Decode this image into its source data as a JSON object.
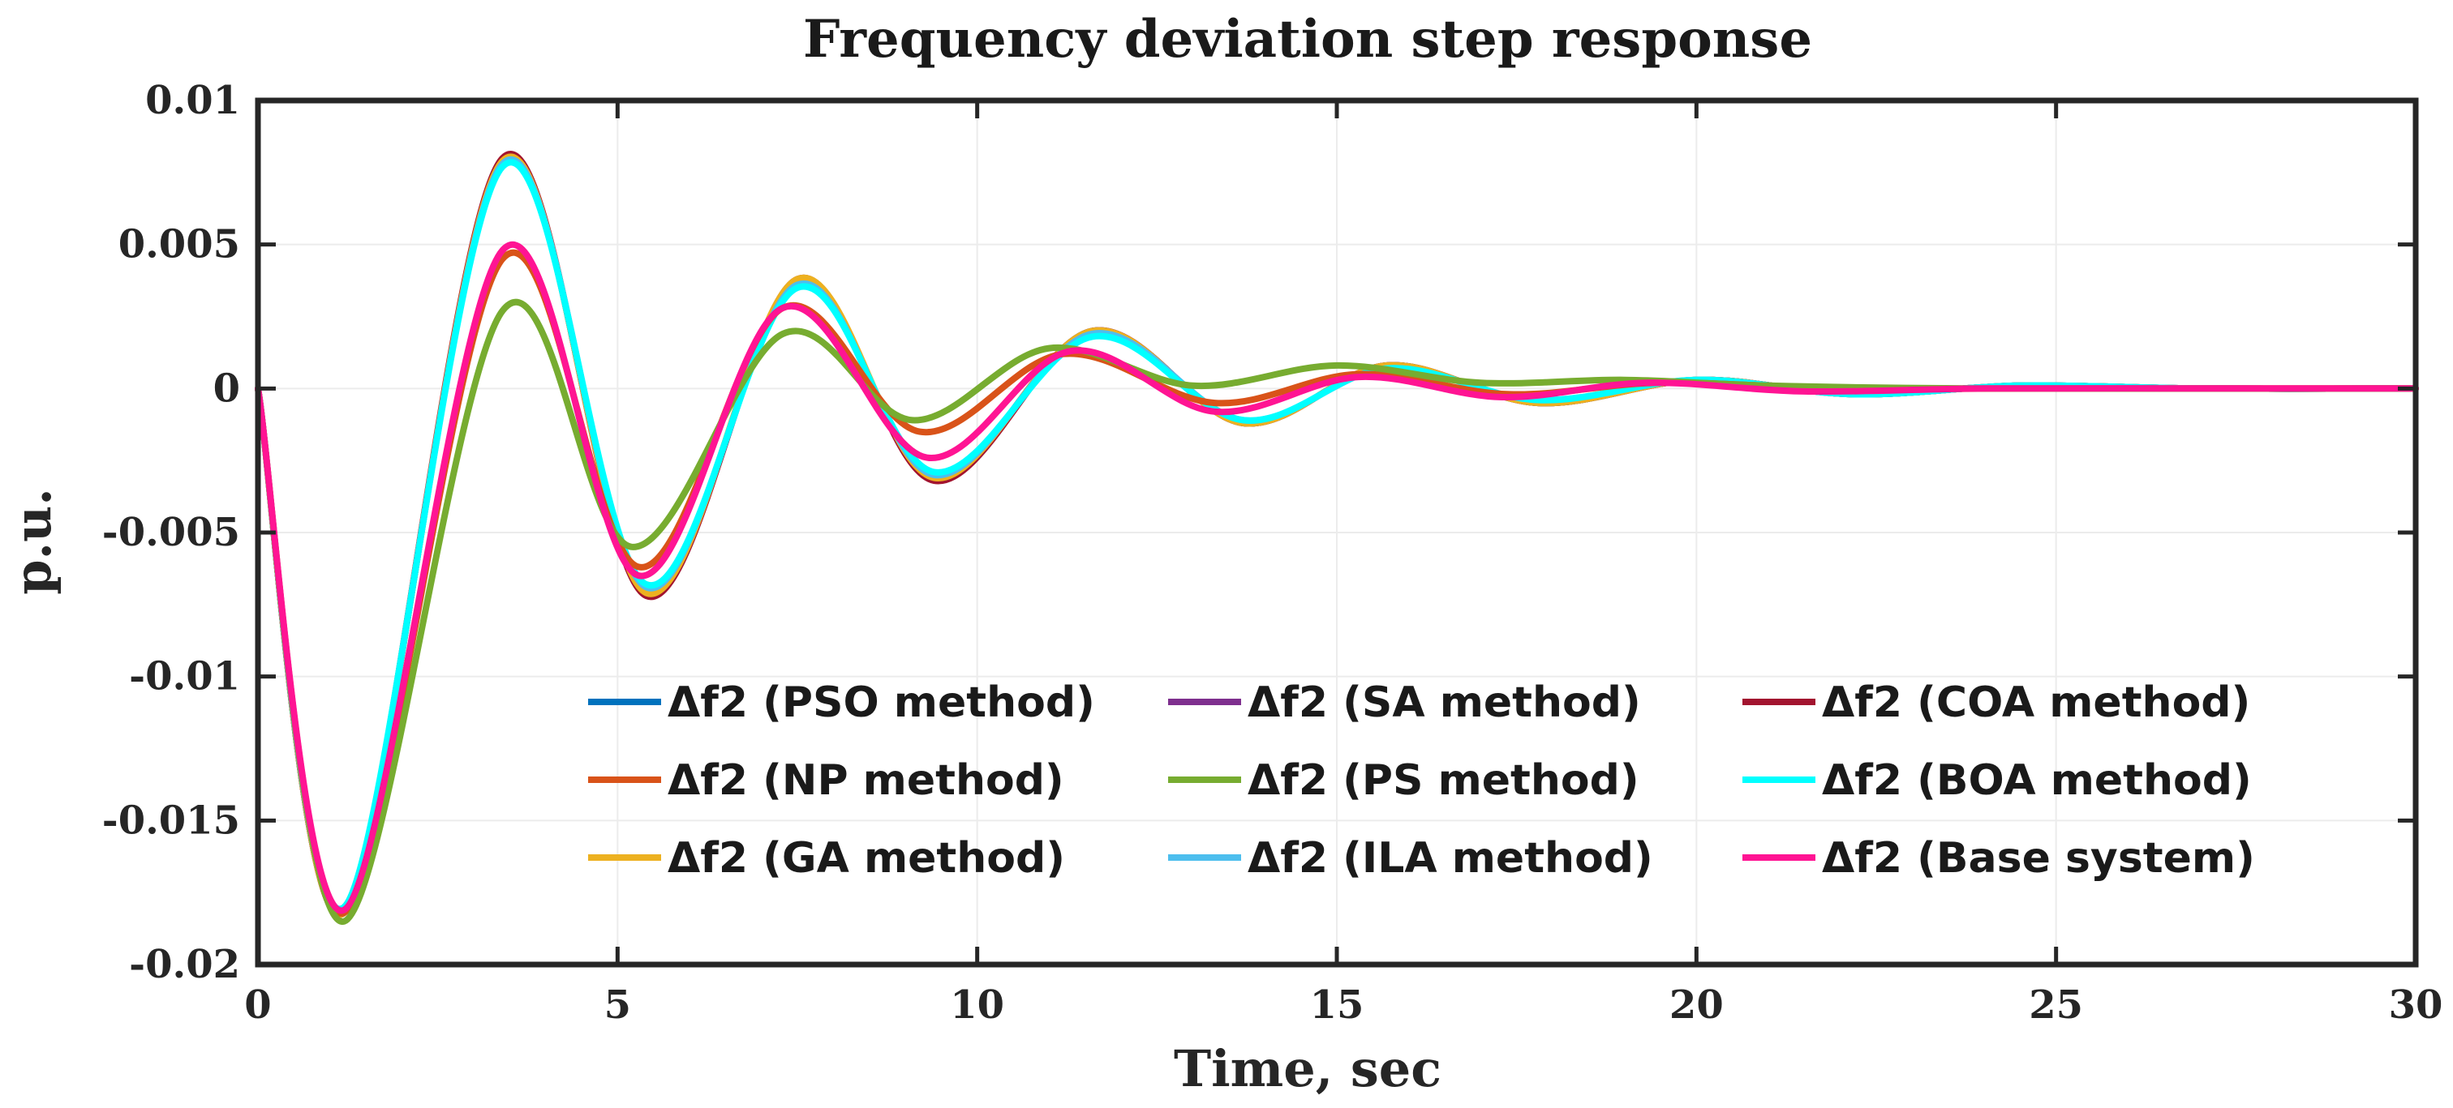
{
  "chart_data": {
    "type": "line",
    "title": "Frequency deviation step response",
    "xlabel": "Time, sec",
    "ylabel": "p.u.",
    "xlim": [
      0,
      30
    ],
    "ylim": [
      -0.02,
      0.01
    ],
    "xticks": [
      0,
      5,
      10,
      15,
      20,
      25,
      30
    ],
    "xtick_labels": [
      "0",
      "5",
      "10",
      "15",
      "20",
      "25",
      "30"
    ],
    "yticks": [
      0.01,
      0.005,
      0,
      -0.005,
      -0.01,
      -0.015,
      -0.02
    ],
    "ytick_labels": [
      "0.01",
      "0.005",
      "0",
      "-0.005",
      "-0.01",
      "-0.015",
      "-0.02"
    ],
    "grid": true,
    "legend_position": "lower-right",
    "series": [
      {
        "name": "Δf2 (PSO method)",
        "color": "#0072BD",
        "x": [
          0,
          1.2,
          3.4,
          5.4,
          7.5,
          9.4,
          11.6,
          13.7,
          15.7,
          17.8,
          20.0,
          22.2,
          24.5,
          27,
          30
        ],
        "y": [
          0,
          -0.0182,
          0.0079,
          -0.0071,
          0.0037,
          -0.0031,
          0.002,
          -0.0012,
          0.0008,
          -0.0005,
          0.0003,
          -0.0002,
          0.0001,
          0,
          0
        ]
      },
      {
        "name": "Δf2 (SA method)",
        "color": "#7E2F8E",
        "x": [
          0,
          1.2,
          3.4,
          5.4,
          7.5,
          9.4,
          11.6,
          13.7,
          15.7,
          17.8,
          20.0,
          22.2,
          24.5,
          27,
          30
        ],
        "y": [
          0,
          -0.0182,
          0.0079,
          -0.0071,
          0.0037,
          -0.0031,
          0.002,
          -0.0012,
          0.0008,
          -0.0005,
          0.0003,
          -0.0002,
          0.0001,
          0,
          0
        ]
      },
      {
        "name": "Δf2 (COA method)",
        "color": "#A2142F",
        "x": [
          0,
          1.2,
          3.4,
          5.4,
          7.5,
          9.4,
          11.6,
          13.7,
          15.7,
          17.8,
          20.0,
          22.2,
          24.5,
          27,
          30
        ],
        "y": [
          0,
          -0.0182,
          0.008,
          -0.0072,
          0.0038,
          -0.0032,
          0.002,
          -0.0012,
          0.0008,
          -0.0005,
          0.0003,
          -0.0002,
          0.0001,
          0,
          0
        ]
      },
      {
        "name": "Δf2 (NP method)",
        "color": "#D95319",
        "x": [
          0,
          1.2,
          3.4,
          5.3,
          7.3,
          9.2,
          11.2,
          13.3,
          15.3,
          17.4,
          19.5,
          22,
          25,
          30
        ],
        "y": [
          0,
          -0.0182,
          0.0045,
          -0.0062,
          0.0028,
          -0.0015,
          0.0012,
          -0.0005,
          0.0005,
          -0.0002,
          0.0002,
          0,
          0,
          0
        ]
      },
      {
        "name": "Δf2 (PS method)",
        "color": "#77AC30",
        "x": [
          0,
          1.2,
          3.4,
          5.2,
          7.3,
          9.1,
          11.0,
          13.0,
          15.0,
          17.0,
          19.0,
          21,
          24,
          30
        ],
        "y": [
          0,
          -0.0185,
          0.0027,
          -0.0055,
          0.0019,
          -0.0011,
          0.0014,
          0.0001,
          0.0008,
          0.0002,
          0.0003,
          0.0001,
          0,
          0
        ]
      },
      {
        "name": "Δf2 (BOA method)",
        "color": "#00FFFF",
        "x": [
          0,
          1.2,
          3.4,
          5.4,
          7.5,
          9.4,
          11.6,
          13.7,
          15.7,
          17.8,
          20.0,
          22.2,
          24.5,
          27,
          30
        ],
        "y": [
          0,
          -0.018,
          0.0077,
          -0.0068,
          0.0035,
          -0.0029,
          0.0018,
          -0.0011,
          0.0007,
          -0.0004,
          0.0003,
          -0.0002,
          0.0001,
          0,
          0
        ]
      },
      {
        "name": "Δf2 (GA method)",
        "color": "#EDB120",
        "x": [
          0,
          1.2,
          3.4,
          5.4,
          7.5,
          9.4,
          11.6,
          13.7,
          15.7,
          17.8,
          20.0,
          22.2,
          24.5,
          27,
          30
        ],
        "y": [
          0,
          -0.0182,
          0.0079,
          -0.0071,
          0.0038,
          -0.0031,
          0.002,
          -0.0012,
          0.0008,
          -0.0005,
          0.0003,
          -0.0002,
          0.0001,
          0,
          0
        ]
      },
      {
        "name": "Δf2 (ILA method)",
        "color": "#4DBEEE",
        "x": [
          0,
          1.2,
          3.4,
          5.4,
          7.5,
          9.4,
          11.6,
          13.7,
          15.7,
          17.8,
          20.0,
          22.2,
          24.5,
          27,
          30
        ],
        "y": [
          0,
          -0.0181,
          0.0078,
          -0.0069,
          0.0036,
          -0.003,
          0.0019,
          -0.0011,
          0.0007,
          -0.0004,
          0.0003,
          -0.0002,
          0.0001,
          0,
          0
        ]
      },
      {
        "name": "Δf2 (Base system)",
        "color": "#FF1493",
        "x": [
          0,
          1.2,
          3.4,
          5.3,
          7.3,
          9.3,
          11.3,
          13.3,
          15.3,
          17.3,
          19.3,
          21.5,
          24,
          27,
          30
        ],
        "y": [
          0,
          -0.0181,
          0.0048,
          -0.0065,
          0.0028,
          -0.0024,
          0.0013,
          -0.0008,
          0.0004,
          -0.0003,
          0.0002,
          -0.0001,
          0,
          0,
          0
        ]
      }
    ]
  }
}
